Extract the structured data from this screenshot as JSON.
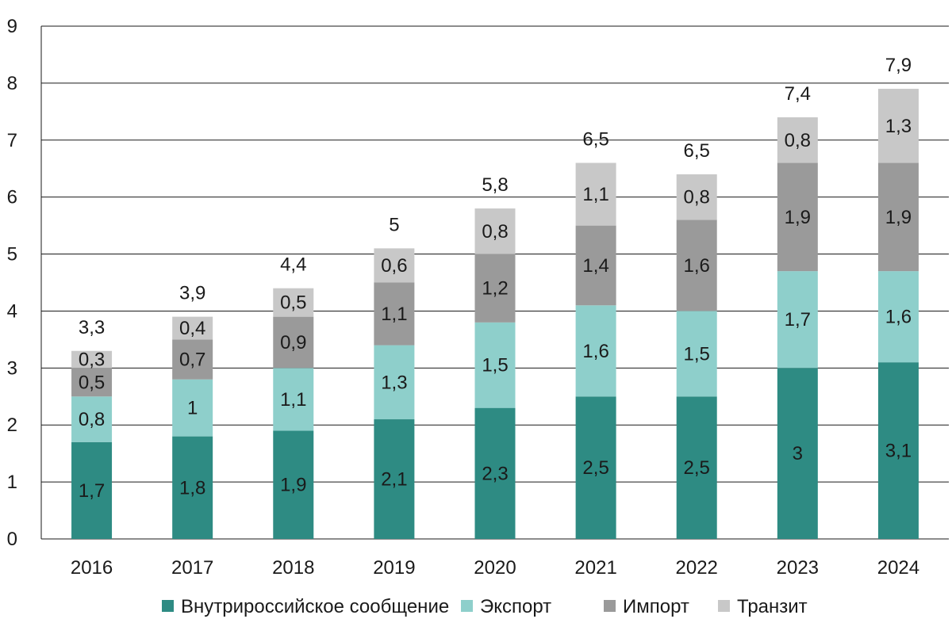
{
  "chart_data": {
    "type": "bar",
    "stacked": true,
    "title": "",
    "xlabel": "",
    "ylabel": "",
    "categories": [
      "2016",
      "2017",
      "2018",
      "2019",
      "2020",
      "2021",
      "2022",
      "2023",
      "2024"
    ],
    "ylim": [
      0,
      9
    ],
    "yticks": [
      0,
      1,
      2,
      3,
      4,
      5,
      6,
      7,
      8,
      9
    ],
    "grid": true,
    "legend_position": "bottom",
    "series": [
      {
        "name": "Внутрироссийское сообщение",
        "color": "#2e8b83",
        "values": [
          1.7,
          1.8,
          1.9,
          2.1,
          2.3,
          2.5,
          2.5,
          3.0,
          3.1
        ],
        "labels": [
          "1,7",
          "1,8",
          "1,9",
          "2,1",
          "2,3",
          "2,5",
          "2,5",
          "3",
          "3,1"
        ]
      },
      {
        "name": "Экспорт",
        "color": "#8ecfcb",
        "values": [
          0.8,
          1.0,
          1.1,
          1.3,
          1.5,
          1.6,
          1.5,
          1.7,
          1.6
        ],
        "labels": [
          "0,8",
          "1",
          "1,1",
          "1,3",
          "1,5",
          "1,6",
          "1,5",
          "1,7",
          "1,6"
        ]
      },
      {
        "name": "Импорт",
        "color": "#9a9a9a",
        "values": [
          0.5,
          0.7,
          0.9,
          1.1,
          1.2,
          1.4,
          1.6,
          1.9,
          1.9
        ],
        "labels": [
          "0,5",
          "0,7",
          "0,9",
          "1,1",
          "1,2",
          "1,4",
          "1,6",
          "1,9",
          "1,9"
        ]
      },
      {
        "name": "Транзит",
        "color": "#c8c8c8",
        "values": [
          0.3,
          0.4,
          0.5,
          0.6,
          0.8,
          1.1,
          0.8,
          0.8,
          1.3
        ],
        "labels": [
          "0,3",
          "0,4",
          "0,5",
          "0,6",
          "0,8",
          "1,1",
          "0,8",
          "0,8",
          "1,3"
        ]
      }
    ],
    "totals": [
      3.3,
      3.9,
      4.4,
      5.0,
      5.8,
      6.5,
      6.5,
      7.4,
      7.9
    ],
    "total_labels": [
      "3,3",
      "3,9",
      "4,4",
      "5",
      "5,8",
      "6,5",
      "6,5",
      "7,4",
      "7,9"
    ]
  }
}
